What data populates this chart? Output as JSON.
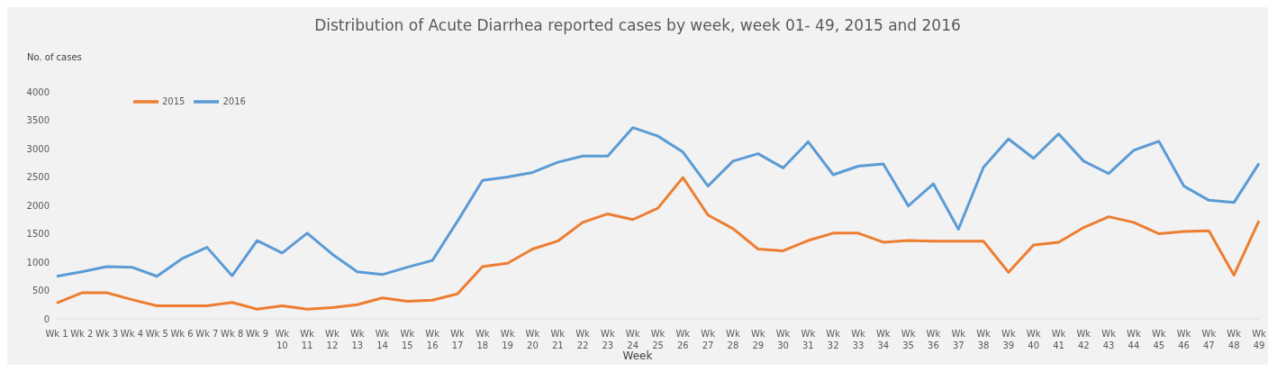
{
  "chart_data": {
    "type": "line",
    "title": "Distribution of Acute Diarrhea reported cases by week, week 01- 49, 2015 and 2016",
    "ylabel": "No. of cases",
    "xlabel": "Week",
    "categories": [
      "Wk 1",
      "Wk 2",
      "Wk 3",
      "Wk 4",
      "Wk 5",
      "Wk 6",
      "Wk 7",
      "Wk 8",
      "Wk 9",
      "Wk 10",
      "Wk 11",
      "Wk 12",
      "Wk 13",
      "Wk 14",
      "Wk 15",
      "Wk 16",
      "Wk 17",
      "Wk 18",
      "Wk 19",
      "Wk 20",
      "Wk 21",
      "Wk 22",
      "Wk 23",
      "Wk 24",
      "Wk 25",
      "Wk 26",
      "Wk 27",
      "Wk 28",
      "Wk 29",
      "Wk 30",
      "Wk 31",
      "Wk 32",
      "Wk 33",
      "Wk 34",
      "Wk 35",
      "Wk 36",
      "Wk 37",
      "Wk 38",
      "Wk 39",
      "Wk 40",
      "Wk 41",
      "Wk 42",
      "Wk 43",
      "Wk 44",
      "Wk 45",
      "Wk 46",
      "Wk 47",
      "Wk 48",
      "Wk 49"
    ],
    "series": [
      {
        "name": "2016",
        "color": "#5b9bd5",
        "values": [
          750,
          830,
          920,
          910,
          750,
          1060,
          1260,
          760,
          1380,
          1160,
          1510,
          1140,
          830,
          780,
          910,
          1030,
          1720,
          2440,
          2500,
          2580,
          2760,
          2870,
          2870,
          3370,
          3220,
          2940,
          2340,
          2780,
          2910,
          2660,
          3120,
          2540,
          2690,
          2730,
          1990,
          2380,
          1580,
          2670,
          3170,
          2830,
          3260,
          2780,
          2560,
          2970,
          3130,
          2340,
          2090,
          2050,
          2740
        ]
      },
      {
        "name": "2015",
        "color": "#ed7d31",
        "values": [
          280,
          460,
          460,
          340,
          230,
          230,
          230,
          290,
          170,
          230,
          170,
          200,
          250,
          370,
          310,
          330,
          440,
          920,
          980,
          1230,
          1370,
          1700,
          1850,
          1750,
          1950,
          2490,
          1830,
          1590,
          1230,
          1200,
          1380,
          1510,
          1510,
          1350,
          1380,
          1370,
          1370,
          1370,
          820,
          1300,
          1350,
          1610,
          1800,
          1700,
          1500,
          1540,
          1550,
          770,
          1730
        ]
      }
    ],
    "ylim": [
      0,
      4000
    ],
    "yticks": [
      0,
      500,
      1000,
      1500,
      2000,
      2500,
      3000,
      3500,
      4000
    ],
    "grid": false,
    "legend": "top left",
    "marker": "none",
    "line_style": "solid"
  }
}
